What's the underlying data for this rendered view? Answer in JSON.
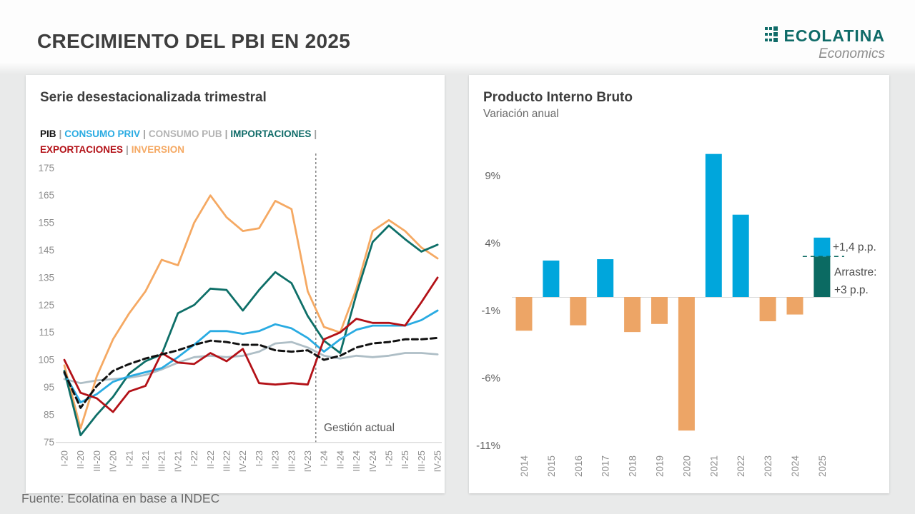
{
  "page": {
    "title": "CRECIMIENTO DEL PBI EN 2025",
    "source": "Fuente: Ecolatina en base a INDEC",
    "logo": {
      "name": "ECOLATINA",
      "tagline": "Economics",
      "color": "#0f6b68"
    }
  },
  "left_panel": {
    "title": "Serie desestacionalizada trimestral",
    "separator": "|",
    "legend_lines": [
      {
        "items": [
          {
            "label": "PIB",
            "color": "#111111"
          },
          {
            "label": "CONSUMO PRIV",
            "color": "#29abe2"
          },
          {
            "label": "CONSUMO PUB",
            "color": "#b3b3b3"
          },
          {
            "label": "IMPORTACIONES",
            "color": "#0f6b68"
          }
        ],
        "trailing_separator": true
      },
      {
        "items": [
          {
            "label": "EXPORTACIONES",
            "color": "#b31117"
          },
          {
            "label": "INVERSION",
            "color": "#f5a963"
          }
        ],
        "trailing_separator": false
      }
    ],
    "divider_label": "Gestión actual"
  },
  "right_panel": {
    "title": "Producto Interno Bruto",
    "subtitle": "Variación anual",
    "annotations": {
      "top": "+1,4 p.p.",
      "arrastre_line1": "Arrastre:",
      "arrastre_line2": "+3 p.p."
    }
  },
  "chart_data": [
    {
      "type": "line",
      "title": "Serie desestacionalizada trimestral",
      "categories": [
        "I-20",
        "II-20",
        "III-20",
        "IV-20",
        "I-21",
        "II-21",
        "III-21",
        "IV-21",
        "I-22",
        "II-22",
        "III-22",
        "IV-22",
        "I-23",
        "II-23",
        "III-23",
        "IV-23",
        "I-24",
        "II-24",
        "III-24",
        "IV-24",
        "I-25",
        "II-25",
        "III-25",
        "IV-25"
      ],
      "ylim": [
        75,
        175
      ],
      "yticks": [
        75,
        85,
        95,
        105,
        115,
        125,
        135,
        145,
        155,
        165,
        175
      ],
      "grid": false,
      "divider_after_index": 15,
      "series": [
        {
          "name": "PIB",
          "color": "#111111",
          "dashed": true,
          "values": [
            100.5,
            87.5,
            95.5,
            101,
            103.5,
            105.5,
            107,
            108.5,
            110.5,
            112,
            111.5,
            110.5,
            110.5,
            108.5,
            108,
            108.5,
            105,
            106.5,
            109.5,
            111,
            111.5,
            112.5,
            112.5,
            113
          ]
        },
        {
          "name": "CONSUMO PRIV",
          "color": "#29abe2",
          "dashed": false,
          "values": [
            100,
            89.5,
            92.5,
            97,
            99,
            100.5,
            102,
            106,
            110.5,
            115.5,
            115.5,
            114.5,
            115.5,
            118,
            116.5,
            113,
            108,
            112.5,
            116,
            117.5,
            117.5,
            117.5,
            119.5,
            123
          ]
        },
        {
          "name": "CONSUMO PUB",
          "color": "#aebec6",
          "dashed": false,
          "values": [
            98,
            96.5,
            97.5,
            98,
            98.5,
            99.5,
            101.5,
            104,
            106,
            106.5,
            106,
            106.5,
            108,
            111,
            111.5,
            109.5,
            106.5,
            105.5,
            106.5,
            106,
            106.5,
            107.5,
            107.5,
            107
          ]
        },
        {
          "name": "IMPORTACIONES",
          "color": "#0e6f68",
          "dashed": false,
          "values": [
            101,
            77.5,
            85,
            91.5,
            100,
            104.5,
            107,
            122,
            125,
            131,
            130.5,
            123,
            130.5,
            137,
            133,
            121,
            112,
            107.5,
            129,
            148,
            154,
            149,
            144.5,
            147
          ]
        },
        {
          "name": "EXPORTACIONES",
          "color": "#b31117",
          "dashed": false,
          "values": [
            105,
            93,
            91,
            86,
            93.5,
            95.5,
            107.5,
            104,
            103.5,
            107.5,
            104.5,
            109,
            96.5,
            96,
            96.5,
            96,
            112.5,
            115,
            120,
            118.5,
            118.5,
            117.5,
            126,
            135
          ]
        },
        {
          "name": "INVERSION",
          "color": "#f5a963",
          "dashed": false,
          "values": [
            103,
            80,
            99,
            112.5,
            122,
            130,
            141.5,
            139.5,
            155,
            165,
            157,
            152,
            153,
            163,
            160,
            130,
            117,
            115,
            131,
            152,
            156,
            152,
            146,
            142
          ]
        }
      ]
    },
    {
      "type": "bar",
      "title": "Producto Interno Bruto",
      "subtitle": "Variación anual",
      "categories": [
        "2014",
        "2015",
        "2016",
        "2017",
        "2018",
        "2019",
        "2020",
        "2021",
        "2022",
        "2023",
        "2024",
        "2025"
      ],
      "values": [
        -2.5,
        2.7,
        -2.1,
        2.8,
        -2.6,
        -2.0,
        -9.9,
        10.6,
        6.1,
        -1.8,
        -1.3,
        4.4
      ],
      "bar_2025": {
        "arrastre": 3.0,
        "adicional": 1.4,
        "total": 4.4
      },
      "colors": {
        "positive": "#00a6dc",
        "negative": "#eda566",
        "arrastre": "#0b6a62"
      },
      "yticks": [
        9,
        4,
        -1,
        -6,
        -11
      ],
      "tick_suffix": "%",
      "grid": false,
      "annotations": [
        "+1,4 p.p.",
        "Arrastre: +3 p.p."
      ]
    }
  ]
}
